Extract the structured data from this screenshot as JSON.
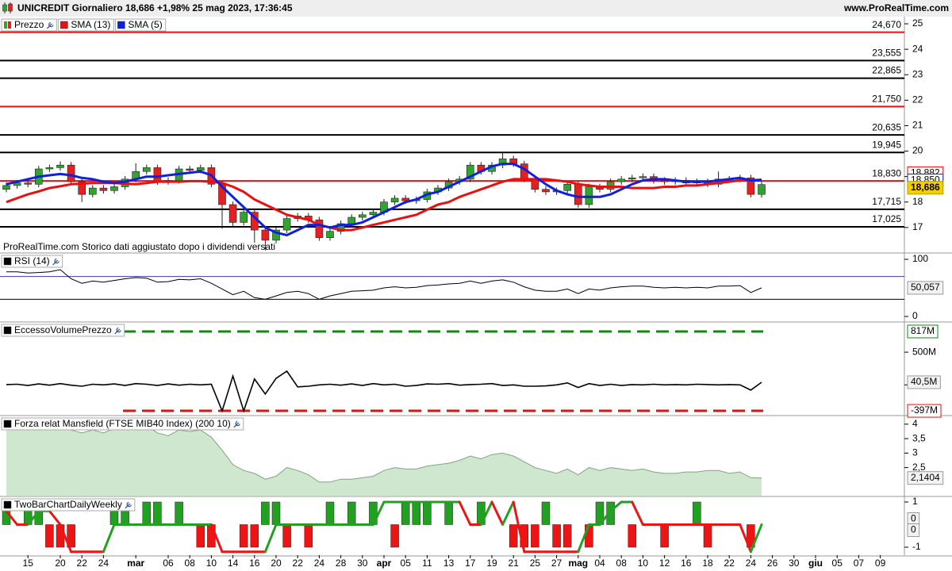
{
  "header": {
    "title": "UNICREDIT Giornaliero 18,686 +1,98% 25 mag 2023, 17:36:45",
    "site": "www.ProRealTime.com"
  },
  "x_axis": {
    "categories": [
      null,
      null,
      "15",
      null,
      null,
      "20",
      null,
      "22",
      null,
      "24",
      null,
      null,
      "mar",
      null,
      null,
      "06",
      null,
      "08",
      null,
      "10",
      null,
      "14",
      null,
      "16",
      null,
      "20",
      null,
      "22",
      null,
      "24",
      null,
      "28",
      null,
      "30",
      null,
      "apr",
      null,
      "05",
      null,
      "11",
      null,
      "13",
      null,
      "17",
      null,
      "19",
      null,
      "21",
      null,
      "25",
      null,
      "27",
      null,
      "mag",
      null,
      "04",
      null,
      "08",
      null,
      "10",
      null,
      "12",
      null,
      "16",
      null,
      "18",
      null,
      "22",
      null,
      "24",
      null
    ],
    "future_categories": [
      "26",
      null,
      "30",
      null,
      "giu",
      null,
      "05",
      null,
      "07",
      null,
      "09",
      null
    ]
  },
  "chart_data": [
    {
      "type": "candlestick",
      "name": "Prezzo",
      "up_color": "#2fa52f",
      "down_color": "#e52020",
      "open": [
        18.5,
        18.65,
        18.75,
        18.7,
        19.3,
        19.35,
        19.45,
        18.8,
        18.3,
        18.55,
        18.45,
        18.6,
        18.9,
        19.2,
        19.35,
        18.8,
        18.85,
        19.3,
        19.25,
        19.35,
        18.7,
        17.9,
        17.2,
        17.6,
        16.9,
        16.5,
        16.9,
        17.35,
        17.45,
        17.3,
        16.6,
        16.85,
        17.15,
        17.4,
        17.5,
        17.6,
        18.0,
        18.15,
        18.05,
        18.1,
        18.4,
        18.55,
        18.8,
        18.9,
        19.45,
        19.2,
        19.45,
        19.7,
        19.5,
        18.9,
        18.5,
        18.4,
        18.45,
        18.7,
        17.9,
        18.6,
        18.5,
        18.8,
        18.9,
        18.95,
        19.0,
        18.85,
        18.8,
        18.85,
        18.75,
        18.8,
        18.7,
        18.9,
        18.9,
        18.95,
        18.3
      ],
      "high": [
        18.77,
        18.87,
        18.87,
        19.42,
        19.47,
        19.6,
        19.57,
        18.92,
        18.67,
        18.67,
        18.72,
        19.02,
        19.52,
        19.47,
        19.47,
        18.97,
        19.42,
        19.42,
        19.47,
        19.47,
        18.82,
        18.02,
        17.72,
        17.72,
        17.02,
        17.02,
        17.47,
        17.57,
        17.57,
        17.42,
        16.97,
        17.27,
        17.52,
        17.62,
        17.72,
        18.12,
        18.27,
        18.27,
        18.22,
        18.52,
        18.67,
        18.92,
        19.02,
        19.57,
        19.57,
        19.57,
        19.95,
        19.82,
        19.62,
        19.02,
        18.62,
        18.57,
        18.82,
        18.82,
        18.72,
        18.72,
        18.92,
        19.02,
        19.07,
        19.12,
        19.12,
        18.97,
        18.97,
        18.97,
        18.92,
        18.92,
        19.2,
        19.02,
        19.07,
        19.07,
        18.8
      ],
      "low": [
        18.38,
        18.53,
        18.58,
        18.58,
        19.18,
        19.23,
        18.68,
        18.0,
        18.18,
        18.33,
        18.33,
        18.48,
        18.78,
        19.08,
        18.68,
        18.68,
        18.73,
        19.13,
        19.13,
        18.58,
        16.95,
        17.0,
        17.08,
        16.4,
        16.1,
        16.38,
        16.78,
        17.23,
        17.18,
        16.48,
        16.48,
        16.73,
        17.03,
        17.28,
        17.38,
        17.48,
        17.88,
        17.93,
        17.93,
        17.98,
        18.28,
        18.43,
        18.68,
        18.78,
        19.08,
        19.08,
        19.33,
        19.38,
        18.78,
        18.38,
        18.28,
        18.28,
        18.33,
        17.78,
        17.78,
        18.38,
        18.38,
        18.68,
        18.78,
        18.83,
        18.73,
        18.68,
        18.68,
        18.63,
        18.63,
        18.58,
        18.58,
        18.78,
        18.78,
        18.18,
        18.18
      ],
      "close": [
        18.65,
        18.75,
        18.7,
        19.3,
        19.35,
        19.45,
        18.8,
        18.3,
        18.55,
        18.45,
        18.6,
        18.9,
        19.2,
        19.35,
        18.8,
        18.85,
        19.3,
        19.25,
        19.35,
        18.7,
        17.9,
        17.2,
        17.6,
        16.9,
        16.5,
        16.9,
        17.35,
        17.45,
        17.3,
        16.6,
        16.85,
        17.15,
        17.4,
        17.5,
        17.6,
        18.0,
        18.15,
        18.05,
        18.1,
        18.4,
        18.55,
        18.8,
        18.9,
        19.45,
        19.2,
        19.45,
        19.7,
        19.5,
        18.9,
        18.5,
        18.4,
        18.45,
        18.7,
        17.9,
        18.6,
        18.5,
        18.8,
        18.9,
        18.95,
        19.0,
        18.85,
        18.8,
        18.85,
        18.75,
        18.8,
        18.7,
        18.9,
        18.9,
        18.95,
        18.3,
        18.686
      ],
      "last": {
        "value": 18.686,
        "label": "18,686"
      },
      "series": [
        {
          "name": "SMA (13)",
          "color": "#e81010",
          "last": {
            "value": 18.882,
            "label": "18,882"
          },
          "values": [
            18.0,
            18.15,
            18.3,
            18.42,
            18.55,
            18.62,
            18.7,
            18.72,
            18.75,
            18.75,
            18.75,
            18.72,
            18.7,
            18.75,
            18.8,
            18.8,
            18.8,
            18.82,
            18.82,
            18.8,
            18.75,
            18.6,
            18.4,
            18.1,
            17.9,
            17.7,
            17.5,
            17.4,
            17.3,
            17.1,
            17.0,
            16.9,
            16.9,
            17.0,
            17.1,
            17.2,
            17.3,
            17.4,
            17.5,
            17.7,
            17.9,
            18.0,
            18.2,
            18.35,
            18.5,
            18.65,
            18.8,
            18.9,
            18.9,
            18.9,
            18.9,
            18.85,
            18.8,
            18.7,
            18.65,
            18.6,
            18.6,
            18.6,
            18.55,
            18.55,
            18.55,
            18.6,
            18.6,
            18.65,
            18.65,
            18.7,
            18.75,
            18.8,
            18.85,
            18.85,
            18.882
          ]
        },
        {
          "name": "SMA (5)",
          "color": "#1020e0",
          "last": {
            "value": 18.85,
            "label": "18,850"
          },
          "values": [
            18.7,
            18.8,
            18.9,
            19.0,
            19.05,
            19.1,
            19.05,
            18.95,
            18.9,
            18.8,
            18.75,
            18.8,
            18.9,
            19.0,
            19.0,
            19.05,
            19.1,
            19.15,
            19.2,
            19.05,
            18.6,
            18.2,
            17.8,
            17.4,
            17.0,
            16.8,
            16.7,
            16.9,
            17.1,
            17.1,
            17.0,
            17.1,
            17.1,
            17.2,
            17.4,
            17.6,
            17.8,
            18.0,
            18.1,
            18.3,
            18.4,
            18.6,
            18.8,
            19.0,
            19.2,
            19.4,
            19.5,
            19.5,
            19.3,
            19.0,
            18.7,
            18.45,
            18.3,
            18.2,
            18.2,
            18.2,
            18.3,
            18.5,
            18.7,
            18.85,
            18.9,
            18.9,
            18.85,
            18.8,
            18.8,
            18.8,
            18.85,
            18.9,
            18.95,
            18.85,
            18.85
          ]
        }
      ],
      "levels": [
        {
          "value": 24.67,
          "label": "24,670",
          "color": "#e81010"
        },
        {
          "value": 23.555,
          "label": "23,555",
          "color": "#000000"
        },
        {
          "value": 22.865,
          "label": "22,865",
          "color": "#000000"
        },
        {
          "value": 21.75,
          "label": "21,750",
          "color": "#e81010"
        },
        {
          "value": 20.635,
          "label": "20,635",
          "color": "#000000"
        },
        {
          "value": 19.945,
          "label": "19,945",
          "color": "#000000"
        },
        {
          "value": 18.83,
          "label": "18,830",
          "color": "#e81010"
        },
        {
          "value": 17.715,
          "label": "17,715",
          "color": "#000000"
        },
        {
          "value": 17.025,
          "label": "17,025",
          "color": "#000000"
        }
      ],
      "ylim": [
        16.03,
        25.25
      ],
      "yticks": [
        17,
        18,
        19,
        20,
        21,
        22,
        23,
        24,
        25
      ],
      "note": "ProRealTime.com Storico dati aggiustato dopo i dividendi versati"
    },
    {
      "type": "line",
      "name": "RSI (14)",
      "color": "#000000",
      "values": [
        78,
        78,
        76,
        77,
        78,
        82,
        66,
        58,
        62,
        60,
        63,
        66,
        68,
        67,
        60,
        61,
        65,
        64,
        66,
        58,
        48,
        38,
        44,
        33,
        30,
        36,
        42,
        44,
        40,
        30,
        36,
        40,
        44,
        45,
        46,
        50,
        52,
        50,
        51,
        54,
        55,
        57,
        58,
        62,
        58,
        62,
        64,
        60,
        52,
        46,
        44,
        44,
        48,
        40,
        48,
        46,
        50,
        52,
        53,
        53,
        51,
        50,
        51,
        50,
        51,
        50,
        53,
        53,
        54,
        42,
        50.057
      ],
      "levels": [
        {
          "value": 70,
          "color": "#3a3aa8"
        },
        {
          "value": 30,
          "color": "#000000"
        }
      ],
      "last": {
        "value": 50.057,
        "label": "50,057"
      },
      "ylim": [
        -8.3,
        109.7
      ],
      "yticks": [
        0,
        100
      ]
    },
    {
      "type": "line",
      "name": "EccessoVolumePrezzo",
      "color": "#000000",
      "dashed": true,
      "values": [
        5,
        10,
        -10,
        15,
        -5,
        20,
        -5,
        -20,
        10,
        0,
        15,
        -10,
        20,
        10,
        -10,
        15,
        -5,
        10,
        0,
        10,
        -397,
        135,
        -397,
        90,
        -140,
        100,
        210,
        -30,
        -20,
        0,
        10,
        -5,
        15,
        -10,
        20,
        0,
        10,
        -20,
        -10,
        15,
        10,
        20,
        -5,
        5,
        10,
        20,
        -10,
        0,
        -20,
        -20,
        -15,
        0,
        30,
        -40,
        20,
        -10,
        10,
        -10,
        5,
        0,
        10,
        0,
        5,
        0,
        10,
        5,
        0,
        5,
        0,
        -80,
        40.5
      ],
      "levels": [
        {
          "value": 817,
          "label": "817M",
          "color": "#128a12"
        },
        {
          "value": -397,
          "label": "-397M",
          "color": "#e81010"
        }
      ],
      "last": {
        "value": 40.5,
        "label": "40,5M"
      },
      "ylim": [
        -457,
        950
      ],
      "yticks": [
        {
          "value": 500,
          "label": "500M"
        },
        0
      ]
    },
    {
      "type": "area",
      "name": "Forza relat Mansfield (FTSE MIB40 Index) (200 10)",
      "color": "#7fa57f",
      "fill_color": "#cfe6cf",
      "values": [
        3.9,
        4.1,
        4.05,
        4.0,
        3.9,
        4.0,
        3.8,
        3.7,
        3.8,
        3.7,
        3.85,
        3.9,
        4.1,
        3.95,
        3.7,
        3.6,
        3.8,
        3.75,
        3.8,
        3.55,
        3.1,
        2.6,
        2.4,
        2.3,
        2.1,
        2.2,
        2.5,
        2.4,
        2.25,
        2.0,
        2.0,
        2.1,
        2.1,
        2.15,
        2.2,
        2.4,
        2.5,
        2.45,
        2.45,
        2.55,
        2.6,
        2.65,
        2.75,
        2.9,
        2.8,
        2.95,
        3.0,
        2.9,
        2.7,
        2.5,
        2.4,
        2.3,
        2.45,
        2.25,
        2.5,
        2.4,
        2.5,
        2.45,
        2.4,
        2.45,
        2.35,
        2.3,
        2.3,
        2.35,
        2.35,
        2.4,
        2.4,
        2.3,
        2.35,
        2.15,
        2.1404
      ],
      "last": {
        "value": 2.1404,
        "label": "2,1404"
      },
      "ylim": [
        1.53,
        4.27
      ],
      "yticks": [
        {
          "value": 2.5,
          "label": "2,5"
        },
        3,
        {
          "value": 3.5,
          "label": "3,5"
        },
        4
      ]
    },
    {
      "type": "bar",
      "name": "TwoBarChartDailyWeekly",
      "up_color": "#22a022",
      "down_color": "#ee1414",
      "bars": [
        1,
        null,
        1,
        1,
        -1,
        -1,
        -1,
        null,
        null,
        null,
        1,
        1,
        null,
        1,
        1,
        null,
        1,
        null,
        -1,
        -1,
        null,
        null,
        -1,
        -1,
        1,
        1,
        -1,
        null,
        -1,
        null,
        1,
        null,
        1,
        null,
        1,
        null,
        -1,
        1,
        1,
        1,
        null,
        1,
        null,
        null,
        1,
        null,
        null,
        -1,
        -1,
        -1,
        1,
        -1,
        -1,
        null,
        -1,
        1,
        1,
        null,
        -1,
        null,
        null,
        -1,
        null,
        null,
        1,
        -1,
        null,
        null,
        null,
        -1,
        null
      ],
      "line": [
        0.6,
        0,
        0,
        0.6,
        0.6,
        0,
        -1.2,
        -1.2,
        -1.2,
        -1.2,
        0,
        0,
        0,
        0,
        0,
        0,
        0,
        0,
        0,
        0,
        -1.2,
        -1.2,
        -1.2,
        -1.2,
        -1.2,
        0,
        0,
        0,
        0,
        0,
        0,
        0,
        0,
        0,
        0,
        1,
        1,
        1,
        1,
        1,
        1,
        1,
        1,
        0,
        0,
        1,
        0,
        1,
        -1.2,
        -1.2,
        -1.2,
        -1.2,
        -1.2,
        -1.2,
        0,
        0,
        0.6,
        1,
        1,
        0,
        0,
        0,
        0,
        0,
        0,
        0,
        0,
        0,
        0,
        -1.2,
        0
      ],
      "last_values": [
        0,
        0
      ],
      "ylim": [
        -1.35,
        1.21
      ],
      "yticks": [
        -1,
        1
      ]
    }
  ]
}
